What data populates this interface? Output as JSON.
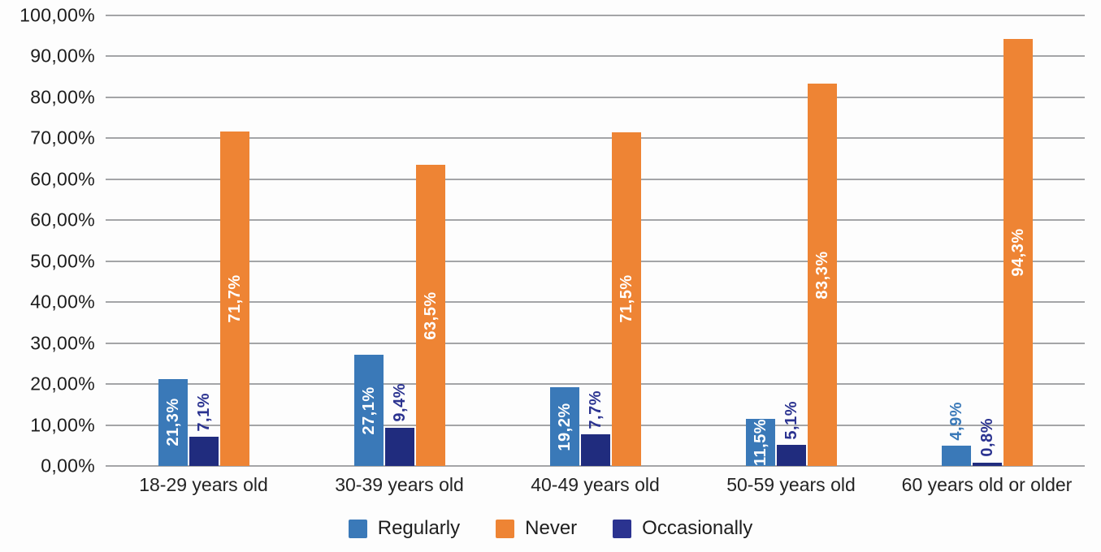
{
  "chart_data": {
    "type": "bar",
    "categories": [
      "18-29 years old",
      "30-39 years old",
      "40-49 years old",
      "50-59 years old",
      "60 years old or older"
    ],
    "series": [
      {
        "name": "Regularly",
        "color": "#3A79B8",
        "label_color": "#3A79B8",
        "values": [
          21.3,
          27.1,
          19.2,
          11.5,
          4.9
        ],
        "labels": [
          "21,3%",
          "27,1%",
          "19,2%",
          "11,5%",
          "4,9%"
        ]
      },
      {
        "name": "Occasionally",
        "color": "#202C7E",
        "label_color": "#2B3390",
        "values": [
          7.1,
          9.4,
          7.7,
          5.1,
          0.8
        ],
        "labels": [
          "7,1%",
          "9,4%",
          "7,7%",
          "5,1%",
          "0,8%"
        ]
      },
      {
        "name": "Never",
        "color": "#EE8434",
        "label_color": "#EE8434",
        "values": [
          71.7,
          63.5,
          71.5,
          83.3,
          94.3
        ],
        "labels": [
          "71,7%",
          "63,5%",
          "71,5%",
          "83,3%",
          "94,3%"
        ]
      }
    ],
    "y_axis_tick_labels": [
      "100,00%",
      "90,00%",
      "80,00%",
      "70,00%",
      "60,00%",
      "60,00%",
      "50,00%",
      "40,00%",
      "30,00%",
      "20,00%",
      "10,00%",
      "0,00%"
    ],
    "y_axis_anomaly": "60,00% label appears twice on consecutive gridlines",
    "ylim": [
      0,
      100
    ],
    "grid": true,
    "legend_position": "bottom",
    "legend": [
      {
        "label": "Regularly",
        "color": "#3A79B8"
      },
      {
        "label": "Never",
        "color": "#EE8434"
      },
      {
        "label": "Occasionally",
        "color": "#2B3390"
      }
    ],
    "value_format": "percent with comma decimal separator"
  }
}
